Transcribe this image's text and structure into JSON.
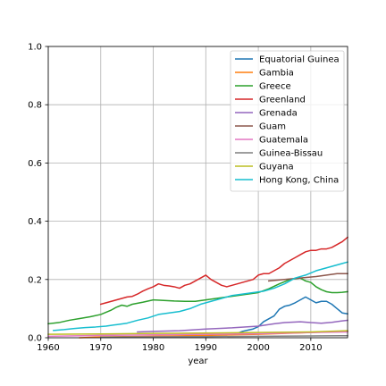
{
  "chart_data": {
    "type": "line",
    "xlabel": "year",
    "ylabel": "",
    "xlim": [
      1960,
      2017
    ],
    "ylim": [
      0,
      1.0
    ],
    "xticks": [
      1960,
      1970,
      1980,
      1990,
      2000,
      2010
    ],
    "xtick_labels": [
      "1960",
      "1970",
      "1980",
      "1990",
      "2000",
      "2010"
    ],
    "yticks": [
      0,
      0.2,
      0.4,
      0.6,
      0.8,
      1.0
    ],
    "ytick_labels": [
      "0.0",
      "0.2",
      "0.4",
      "0.6",
      "0.8",
      "1.0"
    ],
    "grid": true,
    "legend_position": "top-right",
    "series": [
      {
        "name": "Equatorial Guinea",
        "color": "#1f77b4",
        "points": [
          [
            1995,
            0.01
          ],
          [
            1996,
            0.015
          ],
          [
            1997,
            0.022
          ],
          [
            1998,
            0.026
          ],
          [
            1999,
            0.03
          ],
          [
            2000,
            0.038
          ],
          [
            2001,
            0.055
          ],
          [
            2002,
            0.065
          ],
          [
            2003,
            0.075
          ],
          [
            2004,
            0.098
          ],
          [
            2005,
            0.108
          ],
          [
            2006,
            0.112
          ],
          [
            2007,
            0.12
          ],
          [
            2008,
            0.13
          ],
          [
            2009,
            0.14
          ],
          [
            2010,
            0.13
          ],
          [
            2011,
            0.12
          ],
          [
            2012,
            0.125
          ],
          [
            2013,
            0.125
          ],
          [
            2014,
            0.115
          ],
          [
            2015,
            0.1
          ],
          [
            2016,
            0.085
          ],
          [
            2017,
            0.082
          ]
        ]
      },
      {
        "name": "Gambia",
        "color": "#ff7f0e",
        "points": [
          [
            1966,
            0.0
          ],
          [
            1970,
            0.003
          ],
          [
            1980,
            0.005
          ],
          [
            1990,
            0.008
          ],
          [
            2000,
            0.012
          ],
          [
            2010,
            0.018
          ],
          [
            2017,
            0.022
          ]
        ]
      },
      {
        "name": "Greece",
        "color": "#2ca02c",
        "points": [
          [
            1960,
            0.048
          ],
          [
            1962,
            0.052
          ],
          [
            1964,
            0.06
          ],
          [
            1966,
            0.066
          ],
          [
            1968,
            0.072
          ],
          [
            1970,
            0.08
          ],
          [
            1972,
            0.095
          ],
          [
            1973,
            0.105
          ],
          [
            1974,
            0.112
          ],
          [
            1975,
            0.108
          ],
          [
            1976,
            0.115
          ],
          [
            1978,
            0.122
          ],
          [
            1980,
            0.13
          ],
          [
            1982,
            0.128
          ],
          [
            1984,
            0.126
          ],
          [
            1986,
            0.125
          ],
          [
            1988,
            0.125
          ],
          [
            1990,
            0.13
          ],
          [
            1992,
            0.135
          ],
          [
            1994,
            0.14
          ],
          [
            1996,
            0.145
          ],
          [
            1998,
            0.15
          ],
          [
            2000,
            0.155
          ],
          [
            2002,
            0.168
          ],
          [
            2004,
            0.185
          ],
          [
            2006,
            0.2
          ],
          [
            2008,
            0.205
          ],
          [
            2009,
            0.195
          ],
          [
            2010,
            0.19
          ],
          [
            2011,
            0.175
          ],
          [
            2012,
            0.165
          ],
          [
            2013,
            0.158
          ],
          [
            2014,
            0.155
          ],
          [
            2015,
            0.155
          ],
          [
            2016,
            0.156
          ],
          [
            2017,
            0.158
          ]
        ]
      },
      {
        "name": "Greenland",
        "color": "#d62728",
        "points": [
          [
            1970,
            0.115
          ],
          [
            1971,
            0.12
          ],
          [
            1972,
            0.125
          ],
          [
            1973,
            0.13
          ],
          [
            1974,
            0.135
          ],
          [
            1975,
            0.14
          ],
          [
            1976,
            0.142
          ],
          [
            1977,
            0.15
          ],
          [
            1978,
            0.16
          ],
          [
            1979,
            0.168
          ],
          [
            1980,
            0.175
          ],
          [
            1981,
            0.185
          ],
          [
            1982,
            0.18
          ],
          [
            1983,
            0.178
          ],
          [
            1984,
            0.175
          ],
          [
            1985,
            0.17
          ],
          [
            1986,
            0.18
          ],
          [
            1987,
            0.185
          ],
          [
            1988,
            0.195
          ],
          [
            1989,
            0.205
          ],
          [
            1990,
            0.215
          ],
          [
            1991,
            0.2
          ],
          [
            1992,
            0.19
          ],
          [
            1993,
            0.18
          ],
          [
            1994,
            0.175
          ],
          [
            1995,
            0.18
          ],
          [
            1996,
            0.185
          ],
          [
            1997,
            0.19
          ],
          [
            1998,
            0.195
          ],
          [
            1999,
            0.2
          ],
          [
            2000,
            0.215
          ],
          [
            2001,
            0.22
          ],
          [
            2002,
            0.22
          ],
          [
            2003,
            0.23
          ],
          [
            2004,
            0.24
          ],
          [
            2005,
            0.255
          ],
          [
            2006,
            0.265
          ],
          [
            2007,
            0.275
          ],
          [
            2008,
            0.285
          ],
          [
            2009,
            0.295
          ],
          [
            2010,
            0.3
          ],
          [
            2011,
            0.3
          ],
          [
            2012,
            0.305
          ],
          [
            2013,
            0.305
          ],
          [
            2014,
            0.31
          ],
          [
            2015,
            0.32
          ],
          [
            2016,
            0.33
          ],
          [
            2017,
            0.345
          ]
        ]
      },
      {
        "name": "Grenada",
        "color": "#9467bd",
        "points": [
          [
            1977,
            0.02
          ],
          [
            1980,
            0.022
          ],
          [
            1985,
            0.024
          ],
          [
            1990,
            0.03
          ],
          [
            1995,
            0.034
          ],
          [
            2000,
            0.04
          ],
          [
            2003,
            0.048
          ],
          [
            2005,
            0.052
          ],
          [
            2008,
            0.055
          ],
          [
            2010,
            0.052
          ],
          [
            2012,
            0.05
          ],
          [
            2014,
            0.053
          ],
          [
            2016,
            0.058
          ],
          [
            2017,
            0.06
          ]
        ]
      },
      {
        "name": "Guam",
        "color": "#8c564b",
        "points": [
          [
            2002,
            0.195
          ],
          [
            2005,
            0.2
          ],
          [
            2008,
            0.205
          ],
          [
            2011,
            0.21
          ],
          [
            2013,
            0.215
          ],
          [
            2015,
            0.22
          ],
          [
            2017,
            0.22
          ]
        ]
      },
      {
        "name": "Guatemala",
        "color": "#e377c2",
        "points": [
          [
            1960,
            0.005
          ],
          [
            1970,
            0.008
          ],
          [
            1980,
            0.01
          ],
          [
            1990,
            0.012
          ],
          [
            2000,
            0.014
          ],
          [
            2010,
            0.018
          ],
          [
            2017,
            0.02
          ]
        ]
      },
      {
        "name": "Guinea-Bissau",
        "color": "#7f7f7f",
        "points": [
          [
            1970,
            0.002
          ],
          [
            1980,
            0.003
          ],
          [
            1990,
            0.004
          ],
          [
            2000,
            0.005
          ],
          [
            2010,
            0.006
          ],
          [
            2017,
            0.007
          ]
        ]
      },
      {
        "name": "Guyana",
        "color": "#bcbd22",
        "points": [
          [
            1960,
            0.012
          ],
          [
            1970,
            0.013
          ],
          [
            1980,
            0.015
          ],
          [
            1990,
            0.016
          ],
          [
            2000,
            0.018
          ],
          [
            2010,
            0.02
          ],
          [
            2017,
            0.024
          ]
        ]
      },
      {
        "name": "Hong Kong, China",
        "color": "#17becf",
        "points": [
          [
            1961,
            0.025
          ],
          [
            1963,
            0.028
          ],
          [
            1965,
            0.032
          ],
          [
            1967,
            0.035
          ],
          [
            1969,
            0.037
          ],
          [
            1971,
            0.04
          ],
          [
            1973,
            0.045
          ],
          [
            1975,
            0.05
          ],
          [
            1977,
            0.06
          ],
          [
            1979,
            0.068
          ],
          [
            1981,
            0.08
          ],
          [
            1983,
            0.085
          ],
          [
            1985,
            0.09
          ],
          [
            1987,
            0.1
          ],
          [
            1989,
            0.115
          ],
          [
            1991,
            0.125
          ],
          [
            1993,
            0.135
          ],
          [
            1995,
            0.145
          ],
          [
            1997,
            0.15
          ],
          [
            1999,
            0.155
          ],
          [
            2001,
            0.16
          ],
          [
            2003,
            0.17
          ],
          [
            2005,
            0.185
          ],
          [
            2007,
            0.205
          ],
          [
            2009,
            0.215
          ],
          [
            2011,
            0.23
          ],
          [
            2013,
            0.24
          ],
          [
            2015,
            0.25
          ],
          [
            2017,
            0.26
          ]
        ]
      }
    ]
  }
}
